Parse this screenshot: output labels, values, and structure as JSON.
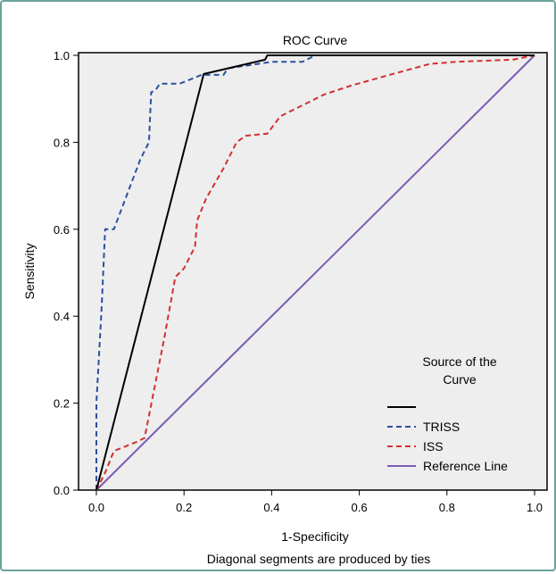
{
  "chart_data": {
    "type": "line",
    "title": "ROC Curve",
    "xlabel": "1-Specificity",
    "ylabel": "Sensitivity",
    "footnote": "Diagonal segments are produced by ties",
    "xlim": [
      0.0,
      1.0
    ],
    "ylim": [
      0.0,
      1.0
    ],
    "xticks": [
      "0.0",
      "0.2",
      "0.4",
      "0.6",
      "0.8",
      "1.0"
    ],
    "yticks": [
      "0.0",
      "0.2",
      "0.4",
      "0.6",
      "0.8",
      "1.0"
    ],
    "grid": false,
    "legend_title": "Source of the Curve",
    "legend_position": "bottom-right",
    "colors": {
      "plot_background": "#eeeeee",
      "frame_border": "#6aa39a"
    },
    "series": [
      {
        "name": "",
        "color": "#000000",
        "dash": "solid",
        "points": [
          [
            0.0,
            0.0
          ],
          [
            0.245,
            0.957
          ],
          [
            0.385,
            0.99
          ],
          [
            0.39,
            1.0
          ],
          [
            1.0,
            1.0
          ]
        ]
      },
      {
        "name": "TRISS",
        "color": "#2d4f9e",
        "dash": "dashed",
        "points": [
          [
            0.0,
            0.0
          ],
          [
            0.0,
            0.2
          ],
          [
            0.012,
            0.42
          ],
          [
            0.02,
            0.6
          ],
          [
            0.04,
            0.6
          ],
          [
            0.1,
            0.76
          ],
          [
            0.12,
            0.8
          ],
          [
            0.125,
            0.915
          ],
          [
            0.135,
            0.92
          ],
          [
            0.145,
            0.935
          ],
          [
            0.19,
            0.935
          ],
          [
            0.24,
            0.955
          ],
          [
            0.29,
            0.955
          ],
          [
            0.3,
            0.97
          ],
          [
            0.4,
            0.985
          ],
          [
            0.47,
            0.985
          ],
          [
            0.5,
            1.0
          ],
          [
            1.0,
            1.0
          ]
        ]
      },
      {
        "name": "ISS",
        "color": "#d32f2f",
        "dash": "dashed",
        "points": [
          [
            0.0,
            0.0
          ],
          [
            0.02,
            0.04
          ],
          [
            0.04,
            0.09
          ],
          [
            0.09,
            0.11
          ],
          [
            0.11,
            0.12
          ],
          [
            0.155,
            0.35
          ],
          [
            0.18,
            0.49
          ],
          [
            0.2,
            0.51
          ],
          [
            0.225,
            0.56
          ],
          [
            0.23,
            0.62
          ],
          [
            0.25,
            0.67
          ],
          [
            0.29,
            0.74
          ],
          [
            0.32,
            0.8
          ],
          [
            0.34,
            0.815
          ],
          [
            0.39,
            0.82
          ],
          [
            0.42,
            0.86
          ],
          [
            0.48,
            0.89
          ],
          [
            0.52,
            0.91
          ],
          [
            0.58,
            0.93
          ],
          [
            0.65,
            0.95
          ],
          [
            0.76,
            0.98
          ],
          [
            0.82,
            0.985
          ],
          [
            0.95,
            0.99
          ],
          [
            1.0,
            1.0
          ]
        ]
      },
      {
        "name": "Reference Line",
        "color": "#7b5bb5",
        "dash": "solid",
        "points": [
          [
            0.0,
            0.0
          ],
          [
            1.0,
            1.0
          ]
        ]
      }
    ]
  }
}
